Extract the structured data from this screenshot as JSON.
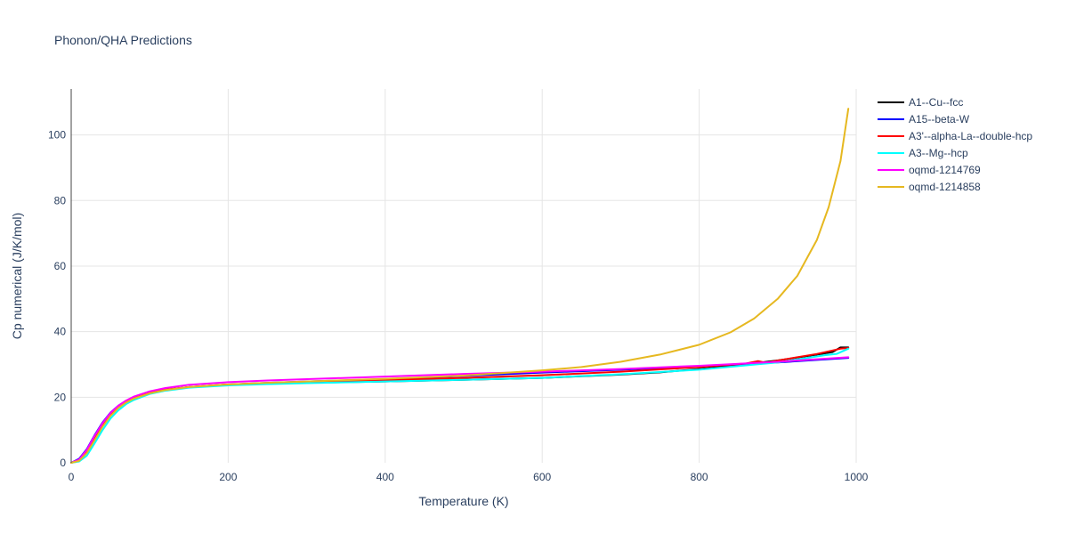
{
  "chart_data": {
    "type": "line",
    "title": "Phonon/QHA Predictions",
    "xlabel": "Temperature (K)",
    "ylabel": "Cp numerical (J/K/mol)",
    "xlim": [
      0,
      1000
    ],
    "ylim": [
      0,
      114
    ],
    "x_ticks": [
      0,
      200,
      400,
      600,
      800,
      1000
    ],
    "y_ticks": [
      0,
      20,
      40,
      60,
      80,
      100
    ],
    "grid": true,
    "legend_position": "top-right",
    "series": [
      {
        "name": "A1--Cu--fcc",
        "color": "#000000",
        "x": [
          0,
          10,
          20,
          30,
          40,
          50,
          60,
          70,
          80,
          100,
          120,
          150,
          200,
          250,
          300,
          400,
          500,
          600,
          700,
          750,
          800,
          850,
          900,
          950,
          970,
          980,
          990
        ],
        "y": [
          0,
          0.8,
          3.5,
          7.5,
          11.5,
          14.8,
          17.0,
          18.6,
          19.8,
          21.3,
          22.2,
          23.0,
          23.8,
          24.2,
          24.4,
          24.8,
          25.3,
          25.9,
          26.9,
          27.6,
          28.6,
          29.8,
          31.2,
          33.0,
          33.8,
          35.2,
          35.2
        ]
      },
      {
        "name": "A15--beta-W",
        "color": "#0000ff",
        "x": [
          0,
          10,
          20,
          30,
          40,
          50,
          60,
          70,
          80,
          100,
          120,
          150,
          200,
          250,
          300,
          400,
          500,
          600,
          700,
          800,
          900,
          990
        ],
        "y": [
          0,
          1.2,
          4.2,
          8.5,
          12.3,
          15.3,
          17.4,
          18.9,
          20.0,
          21.4,
          22.3,
          23.1,
          23.9,
          24.4,
          24.8,
          25.5,
          26.5,
          27.5,
          28.4,
          29.4,
          30.6,
          32.0
        ]
      },
      {
        "name": "A3'--alpha-La--double-hcp",
        "color": "#ff0000",
        "x": [
          0,
          10,
          20,
          30,
          40,
          50,
          60,
          70,
          80,
          100,
          120,
          150,
          200,
          250,
          300,
          400,
          500,
          600,
          700,
          800,
          860,
          875,
          885,
          900,
          950,
          980,
          990
        ],
        "y": [
          0,
          0.9,
          3.8,
          8.0,
          11.8,
          14.9,
          17.1,
          18.7,
          19.9,
          21.3,
          22.3,
          23.1,
          23.9,
          24.3,
          24.6,
          25.2,
          25.9,
          26.7,
          27.8,
          29.2,
          30.3,
          31.0,
          30.5,
          31.2,
          33.2,
          34.8,
          35.0
        ]
      },
      {
        "name": "A3--Mg--hcp",
        "color": "#00ffff",
        "x": [
          0,
          10,
          20,
          30,
          40,
          50,
          60,
          70,
          80,
          100,
          120,
          150,
          200,
          250,
          300,
          400,
          500,
          600,
          700,
          800,
          900,
          960,
          975,
          990
        ],
        "y": [
          0,
          0.4,
          2.2,
          6.0,
          10.0,
          13.5,
          16.0,
          17.9,
          19.2,
          21.0,
          22.0,
          22.9,
          23.6,
          24.0,
          24.3,
          24.8,
          25.3,
          25.9,
          27.0,
          28.4,
          30.6,
          32.8,
          33.2,
          34.8
        ]
      },
      {
        "name": "oqmd-1214769",
        "color": "#ff00ff",
        "x": [
          0,
          10,
          20,
          30,
          40,
          50,
          60,
          70,
          80,
          100,
          120,
          150,
          200,
          250,
          300,
          400,
          500,
          600,
          700,
          800,
          900,
          990
        ],
        "y": [
          0,
          1.0,
          4.0,
          8.3,
          12.1,
          15.2,
          17.4,
          19.0,
          20.2,
          21.8,
          22.8,
          23.8,
          24.6,
          25.1,
          25.5,
          26.3,
          27.1,
          27.8,
          28.6,
          29.6,
          30.8,
          32.2
        ]
      },
      {
        "name": "oqmd-1214858",
        "color": "#e6b820",
        "x": [
          0,
          10,
          20,
          30,
          40,
          50,
          60,
          70,
          80,
          100,
          120,
          150,
          200,
          250,
          300,
          400,
          500,
          600,
          650,
          700,
          750,
          800,
          840,
          870,
          900,
          925,
          950,
          965,
          980,
          990
        ],
        "y": [
          0,
          0.6,
          3.0,
          7.0,
          11.0,
          14.3,
          16.7,
          18.4,
          19.6,
          21.2,
          22.2,
          23.1,
          23.9,
          24.4,
          24.8,
          25.6,
          26.6,
          28.2,
          29.2,
          30.8,
          33.0,
          36.0,
          39.8,
          44.0,
          50.0,
          57.0,
          68.0,
          78.0,
          92.0,
          108.0
        ]
      }
    ]
  }
}
